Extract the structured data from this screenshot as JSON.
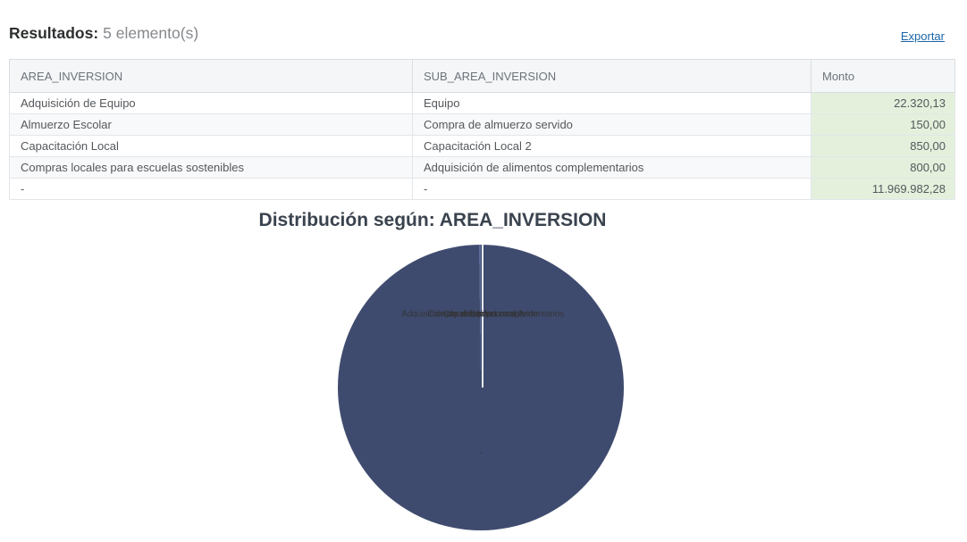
{
  "results": {
    "label": "Resultados:",
    "count_text": "5 elemento(s)"
  },
  "export": {
    "label": "Exportar",
    "link_color": "#1a66a8"
  },
  "table": {
    "columns": [
      "AREA_INVERSION",
      "SUB_AREA_INVERSION",
      "Monto"
    ],
    "rows": [
      {
        "area": "Adquisición de Equipo",
        "sub_area": "Equipo",
        "monto": "22.320,13"
      },
      {
        "area": "Almuerzo Escolar",
        "sub_area": "Compra de almuerzo servido",
        "monto": "150,00"
      },
      {
        "area": "Capacitación Local",
        "sub_area": "Capacitación Local 2",
        "monto": "850,00"
      },
      {
        "area": "Compras locales para escuelas sostenibles",
        "sub_area": "Adquisición de alimentos complementarios",
        "monto": "800,00"
      },
      {
        "area": "-",
        "sub_area": "-",
        "monto": "11.969.982,28"
      }
    ],
    "monto_cell_bg": "#e4f0dc",
    "header_bg": "#f4f6f8"
  },
  "chart": {
    "title": "Distribución según: AREA_INVERSION"
  },
  "chart_data": {
    "type": "pie",
    "title": "Distribución según: AREA_INVERSION",
    "group_field": "AREA_INVERSION",
    "legend": false,
    "slices": [
      {
        "area": "Adquisición de Equipo",
        "label": "Equipo",
        "value": 22320.13
      },
      {
        "area": "Almuerzo Escolar",
        "label": "Compra de almuerzo servido",
        "value": 150.0
      },
      {
        "area": "Capacitación Local",
        "label": "Capacitación Local 2",
        "value": 850.0
      },
      {
        "area": "Compras locales para escuelas sostenibles",
        "label": "Adquisición de alimentos complementarios",
        "value": 800.0
      },
      {
        "area": "-",
        "label": "-",
        "value": 11969982.28
      }
    ],
    "total": 11994102.41,
    "colors": {
      "dominant_slice": "#3f4b6e",
      "first_slice": "#5d6c99",
      "slice_border": "#e6ebf5",
      "label_text": "#333333"
    }
  }
}
